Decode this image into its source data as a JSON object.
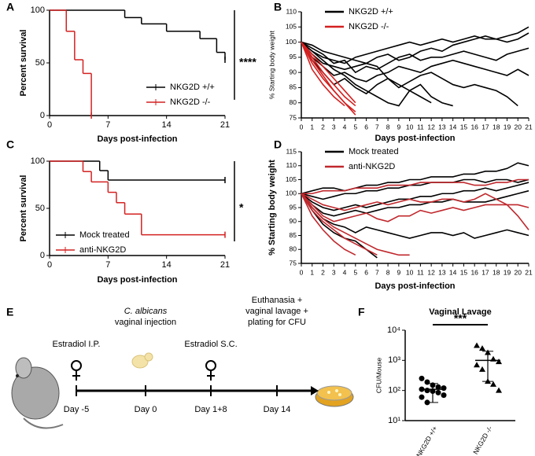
{
  "chart_data": [
    {
      "type": "survival",
      "panel": "A",
      "xlabel": "Days post-infection",
      "ylabel": "Percent survival",
      "xlim": [
        0,
        21
      ],
      "xticks": [
        0,
        7,
        14,
        21
      ],
      "ylim": [
        0,
        100
      ],
      "yticks": [
        0,
        50,
        100
      ],
      "legend": "lower right",
      "annotation": "****",
      "series": [
        {
          "name": "NKG2D +/+",
          "color": "#000000",
          "x": [
            0,
            9,
            11,
            14,
            18,
            20,
            21
          ],
          "values": [
            100,
            93,
            87,
            80,
            73,
            60,
            53
          ]
        },
        {
          "name": "NKG2D -/-",
          "color": "#d42020",
          "x": [
            0,
            2,
            3,
            4,
            5
          ],
          "values": [
            100,
            80,
            53,
            40,
            0
          ]
        }
      ]
    },
    {
      "type": "line",
      "panel": "B",
      "xlabel": "Days post-infection",
      "ylabel": "% Starting body weight",
      "x": [
        0,
        1,
        2,
        3,
        4,
        5,
        6,
        7,
        8,
        9,
        10,
        11,
        12,
        13,
        14,
        15,
        16,
        17,
        18,
        19,
        20,
        21
      ],
      "xlim": [
        0,
        21
      ],
      "xticks": [
        0,
        1,
        2,
        3,
        4,
        5,
        6,
        7,
        8,
        9,
        10,
        11,
        12,
        13,
        14,
        15,
        16,
        17,
        18,
        19,
        20,
        21
      ],
      "ylim": [
        75,
        110
      ],
      "yticks": [
        75,
        80,
        85,
        90,
        95,
        100,
        105,
        110
      ],
      "legend": "upper left",
      "series": [
        {
          "name": "NKG2D +/+",
          "color": "#000000",
          "lines": [
            [
              100,
              97,
              95,
              94,
              93,
              95,
              96,
              97,
              98,
              99,
              100,
              99,
              100,
              101,
              100,
              101,
              102,
              101,
              101,
              102,
              103,
              105
            ],
            [
              100,
              96,
              93,
              92,
              91,
              92,
              93,
              95,
              96,
              94,
              95,
              97,
              98,
              97,
              99,
              100,
              101,
              102,
              101,
              100,
              101,
              103
            ],
            [
              100,
              98,
              96,
              93,
              94,
              90,
              92,
              91,
              93,
              95,
              96,
              94,
              95,
              95,
              96,
              97,
              96,
              95,
              94,
              96,
              97,
              98
            ],
            [
              100,
              95,
              92,
              89,
              90,
              88,
              87,
              89,
              90,
              92,
              91,
              90,
              92,
              93,
              94,
              93,
              92,
              91,
              90,
              89,
              91,
              89
            ],
            [
              100,
              94,
              90,
              86,
              88,
              85,
              83,
              86,
              88,
              85,
              87,
              89,
              90,
              88,
              86,
              85,
              86,
              85,
              84,
              82,
              79
            ],
            [
              100,
              97,
              94,
              91,
              89,
              86,
              84,
              82,
              80,
              79,
              84,
              86,
              82,
              80,
              79
            ],
            [
              100,
              99,
              97,
              96,
              95,
              94,
              93,
              92,
              88,
              86,
              84,
              82,
              80
            ]
          ]
        },
        {
          "name": "NKG2D -/-",
          "color": "#d42020",
          "lines": [
            [
              100,
              93,
              88,
              84,
              80,
              77
            ],
            [
              100,
              95,
              90,
              86,
              82,
              79
            ],
            [
              100,
              91,
              86,
              82,
              79
            ],
            [
              100,
              94,
              89,
              84,
              80,
              76
            ],
            [
              100,
              96,
              92,
              88,
              84,
              80
            ]
          ]
        }
      ]
    },
    {
      "type": "survival",
      "panel": "C",
      "xlabel": "Days post-infection",
      "ylabel": "Percent survival",
      "xlim": [
        0,
        21
      ],
      "xticks": [
        0,
        7,
        14,
        21
      ],
      "ylim": [
        0,
        100
      ],
      "yticks": [
        0,
        50,
        100
      ],
      "legend": "lower left",
      "annotation": "*",
      "series": [
        {
          "name": "Mock treated",
          "color": "#000000",
          "x": [
            0,
            6,
            7,
            21
          ],
          "values": [
            100,
            90,
            80,
            80
          ]
        },
        {
          "name": "anti-NKG2D",
          "color": "#d42020",
          "x": [
            0,
            4,
            5,
            7,
            8,
            9,
            11,
            21
          ],
          "values": [
            100,
            89,
            78,
            67,
            56,
            44,
            22,
            22
          ]
        }
      ]
    },
    {
      "type": "line",
      "panel": "D",
      "xlabel": "Days post-infection",
      "ylabel": "% Starting body weight",
      "x": [
        0,
        1,
        2,
        3,
        4,
        5,
        6,
        7,
        8,
        9,
        10,
        11,
        12,
        13,
        14,
        15,
        16,
        17,
        18,
        19,
        20,
        21
      ],
      "xlim": [
        0,
        21
      ],
      "xticks": [
        0,
        1,
        2,
        3,
        4,
        5,
        6,
        7,
        8,
        9,
        10,
        11,
        12,
        13,
        14,
        15,
        16,
        17,
        18,
        19,
        20,
        21
      ],
      "ylim": [
        75,
        115
      ],
      "yticks": [
        75,
        80,
        85,
        90,
        95,
        100,
        105,
        110,
        115
      ],
      "legend": "upper left",
      "series": [
        {
          "name": "Mock treated",
          "color": "#000000",
          "lines": [
            [
              100,
              101,
              102,
              102,
              101,
              102,
              103,
              103,
              104,
              104,
              105,
              105,
              106,
              106,
              106,
              107,
              107,
              108,
              108,
              109,
              111,
              110
            ],
            [
              100,
              99,
              98,
              99,
              100,
              100,
              101,
              101,
              102,
              102,
              103,
              103,
              104,
              104,
              104,
              105,
              105,
              104,
              105,
              105,
              104,
              105
            ],
            [
              100,
              97,
              95,
              94,
              95,
              96,
              95,
              96,
              97,
              98,
              98,
              99,
              99,
              100,
              100,
              101,
              101,
              102,
              101,
              102,
              103,
              104
            ],
            [
              100,
              96,
              93,
              92,
              93,
              94,
              93,
              94,
              95,
              95,
              96,
              96,
              97,
              97,
              98,
              97,
              97,
              97,
              98,
              99,
              100,
              101
            ],
            [
              100,
              95,
              91,
              89,
              88,
              86,
              88,
              87,
              86,
              85,
              84,
              85,
              86,
              86,
              85,
              86,
              84,
              85,
              86,
              87,
              86,
              85
            ],
            [
              100,
              94,
              89,
              86,
              84,
              83,
              80,
              77
            ]
          ]
        },
        {
          "name": "anti-NKG2D",
          "color": "#c0282d",
          "lines": [
            [
              100,
              100,
              101,
              101,
              101,
              102,
              102,
              102,
              103,
              103,
              103,
              104,
              104,
              104,
              104,
              104,
              103,
              103,
              104,
              104,
              105,
              105
            ],
            [
              100,
              98,
              96,
              95,
              94,
              95,
              96,
              97,
              96,
              97,
              98,
              97,
              97,
              98,
              98,
              97,
              98,
              100,
              98,
              96,
              92,
              87
            ],
            [
              100,
              96,
              92,
              90,
              91,
              92,
              93,
              91,
              90,
              92,
              92,
              94,
              93,
              94,
              95,
              94,
              95,
              96,
              96,
              96,
              96,
              95
            ],
            [
              100,
              94,
              90,
              87,
              84,
              82,
              80,
              78
            ],
            [
              100,
              95,
              91,
              88,
              86,
              84,
              82,
              80,
              79,
              78,
              78
            ],
            [
              100,
              92,
              87,
              83,
              80,
              78
            ]
          ]
        }
      ]
    },
    {
      "type": "scatter",
      "panel": "F",
      "title": "Vaginal Lavage",
      "ylabel": "CFU/Mouse",
      "annotation": "***",
      "categories": [
        "NKG2D +/+",
        "NKG2D -/-"
      ],
      "markers": [
        "circle",
        "triangle"
      ],
      "color": "#000000",
      "log_y": true,
      "ylim": [
        10,
        10000
      ],
      "yticks": [
        {
          "value": 10,
          "label": "10¹"
        },
        {
          "value": 100,
          "label": "10²"
        },
        {
          "value": 1000,
          "label": "10³"
        },
        {
          "value": 10000,
          "label": "10⁴"
        }
      ],
      "values": [
        [
          250,
          190,
          150,
          130,
          120,
          110,
          100,
          95,
          85,
          70,
          60,
          40
        ],
        [
          3100,
          2500,
          1800,
          1100,
          900,
          700,
          500,
          200,
          160,
          100
        ]
      ],
      "means": [
        110,
        1000
      ],
      "error_low": [
        40,
        200
      ],
      "error_high": [
        170,
        2000
      ]
    }
  ],
  "diagram": {
    "panel": "E",
    "steps": [
      {
        "label": [
          "Estradiol I.P."
        ],
        "day": "Day -5"
      },
      {
        "label": [
          "C. albicans",
          "vaginal injection"
        ],
        "day": "Day 0"
      },
      {
        "label": [
          "Estradiol S.C."
        ],
        "day": "Day 1+8"
      },
      {
        "label": [
          "Euthanasia +",
          "vaginal lavage +",
          "plating for CFU"
        ],
        "day": "Day 14"
      }
    ]
  }
}
